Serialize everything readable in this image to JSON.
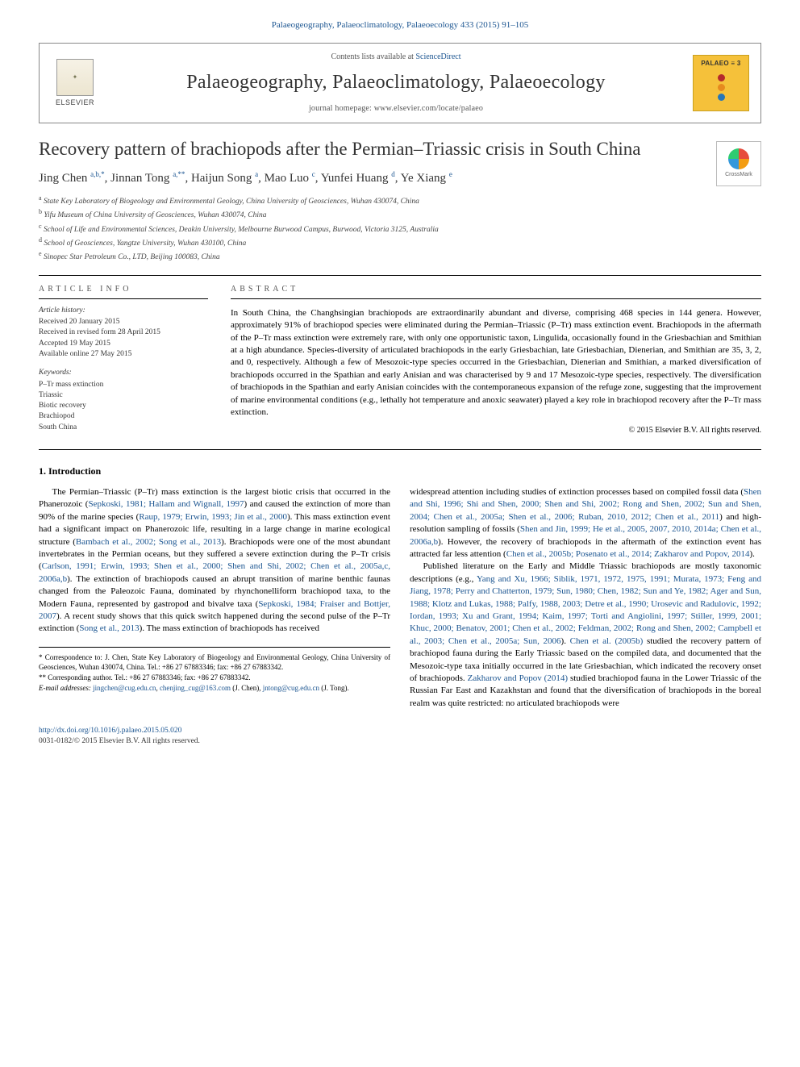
{
  "top_link": {
    "journal_ref": "Palaeogeography, Palaeoclimatology, Palaeoecology 433 (2015) 91–105"
  },
  "header": {
    "elsevier_label": "ELSEVIER",
    "contents_prefix": "Contents lists available at ",
    "contents_link": "ScienceDirect",
    "journal_title": "Palaeogeography, Palaeoclimatology, Palaeoecology",
    "homepage_prefix": "journal homepage: ",
    "homepage_url": "www.elsevier.com/locate/palaeo",
    "badge_text": "PALAEO ≡ 3",
    "badge_dot_colors": [
      "#b5292b",
      "#e68a1e",
      "#2676b8"
    ]
  },
  "article": {
    "title": "Recovery pattern of brachiopods after the Permian–Triassic crisis in South China",
    "crossmark_label": "CrossMark",
    "authors_html": "Jing Chen <sup>a,b,*</sup>, Jinnan Tong <sup>a,**</sup>, Haijun Song <sup>a</sup>, Mao Luo <sup>c</sup>, Yunfei Huang <sup>d</sup>, Ye Xiang <sup>e</sup>",
    "affiliations": [
      "a  State Key Laboratory of Biogeology and Environmental Geology, China University of Geosciences, Wuhan 430074, China",
      "b  Yifu Museum of China University of Geosciences, Wuhan 430074, China",
      "c  School of Life and Environmental Sciences, Deakin University, Melbourne Burwood Campus, Burwood, Victoria 3125, Australia",
      "d  School of Geosciences, Yangtze University, Wuhan 430100, China",
      "e  Sinopec Star Petroleum Co., LTD, Beijing 100083, China"
    ]
  },
  "info": {
    "heading": "article info",
    "history_head": "Article history:",
    "history": [
      "Received 20 January 2015",
      "Received in revised form 28 April 2015",
      "Accepted 19 May 2015",
      "Available online 27 May 2015"
    ],
    "keywords_head": "Keywords:",
    "keywords": [
      "P–Tr mass extinction",
      "Triassic",
      "Biotic recovery",
      "Brachiopod",
      "South China"
    ]
  },
  "abstract": {
    "heading": "abstract",
    "text": "In South China, the Changhsingian brachiopods are extraordinarily abundant and diverse, comprising 468 species in 144 genera. However, approximately 91% of brachiopod species were eliminated during the Permian–Triassic (P–Tr) mass extinction event. Brachiopods in the aftermath of the P–Tr mass extinction were extremely rare, with only one opportunistic taxon, Lingulida, occasionally found in the Griesbachian and Smithian at a high abundance. Species-diversity of articulated brachiopods in the early Griesbachian, late Griesbachian, Dienerian, and Smithian are 35, 3, 2, and 0, respectively. Although a few of Mesozoic-type species occurred in the Griesbachian, Dienerian and Smithian, a marked diversification of brachiopods occurred in the Spathian and early Anisian and was characterised by 9 and 17 Mesozoic-type species, respectively. The diversification of brachiopods in the Spathian and early Anisian coincides with the contemporaneous expansion of the refuge zone, suggesting that the improvement of marine environmental conditions (e.g., lethally hot temperature and anoxic seawater) played a key role in brachiopod recovery after the P–Tr mass extinction.",
    "copyright": "© 2015 Elsevier B.V. All rights reserved."
  },
  "introduction": {
    "heading": "1. Introduction",
    "p1_a": "The Permian–Triassic (P–Tr) mass extinction is the largest biotic crisis that occurred in the Phanerozoic (",
    "p1_ref1": "Sepkoski, 1981; Hallam and Wignall, 1997",
    "p1_b": ") and caused the extinction of more than 90% of the marine species (",
    "p1_ref2": "Raup, 1979; Erwin, 1993; Jin et al., 2000",
    "p1_c": "). This mass extinction event had a significant impact on Phanerozoic life, resulting in a large change in marine ecological structure (",
    "p1_ref3": "Bambach et al., 2002; Song et al., 2013",
    "p1_d": "). Brachiopods were one of the most abundant invertebrates in the Permian oceans, but they suffered a severe extinction during the P–Tr crisis (",
    "p1_ref4": "Carlson, 1991; Erwin, 1993; Shen et al., 2000; Shen and Shi, 2002; Chen et al., 2005a,c, 2006a,b",
    "p1_e": "). The extinction of brachiopods caused an abrupt transition of marine benthic faunas changed from the Paleozoic Fauna, dominated by rhynchonelliform brachiopod taxa, to the Modern Fauna, represented by gastropod and bivalve taxa (",
    "p1_ref5": "Sepkoski, 1984; Fraiser and Bottjer, 2007",
    "p1_f": "). A recent study shows that this quick switch happened during the second pulse of the P–Tr extinction (",
    "p1_ref6": "Song et al., 2013",
    "p1_g": "). The mass extinction of brachiopods has received ",
    "p1_cont_a": "widespread attention including studies of extinction processes based on compiled fossil data (",
    "p1_cont_ref1": "Shen and Shi, 1996; Shi and Shen, 2000; Shen and Shi, 2002; Rong and Shen, 2002; Sun and Shen, 2004; Chen et al., 2005a; Shen et al., 2006; Ruban, 2010, 2012; Chen et al., 2011",
    "p1_cont_b": ") and high-resolution sampling of fossils (",
    "p1_cont_ref2": "Shen and Jin, 1999; He et al., 2005, 2007, 2010, 2014a; Chen et al., 2006a,b",
    "p1_cont_c": "). However, the recovery of brachiopods in the aftermath of the extinction event has attracted far less attention (",
    "p1_cont_ref3": "Chen et al., 2005b; Posenato et al., 2014; Zakharov and Popov, 2014",
    "p1_cont_d": ").",
    "p2_a": "Published literature on the Early and Middle Triassic brachiopods are mostly taxonomic descriptions (e.g., ",
    "p2_ref1": "Yang and Xu, 1966; Siblik, 1971, 1972, 1975, 1991; Murata, 1973; Feng and Jiang, 1978; Perry and Chatterton, 1979; Sun, 1980; Chen, 1982; Sun and Ye, 1982; Ager and Sun, 1988; Klotz and Lukas, 1988; Palfy, 1988, 2003; Detre et al., 1990; Urosevic and Radulovic, 1992; Iordan, 1993; Xu and Grant, 1994; Kaim, 1997; Torti and Angiolini, 1997; Stiller, 1999, 2001; Khuc, 2000; Benatov, 2001; Chen et al., 2002; Feldman, 2002; Rong and Shen, 2002; Campbell et al., 2003; Chen et al., 2005a; Sun, 2006",
    "p2_b": "). ",
    "p2_ref2": "Chen et al. (2005b)",
    "p2_c": " studied the recovery pattern of brachiopod fauna during the Early Triassic based on the compiled data, and documented that the Mesozoic-type taxa initially occurred in the late Griesbachian, which indicated the recovery onset of brachiopods. ",
    "p2_ref3": "Zakharov and Popov (2014)",
    "p2_d": " studied brachiopod fauna in the Lower Triassic of the Russian Far East and Kazakhstan and found that the diversification of brachiopods in the boreal realm was quite restricted: no articulated brachiopods were"
  },
  "footnotes": {
    "corr1": "*  Correspondence to: J. Chen, State Key Laboratory of Biogeology and Environmental Geology, China University of Geosciences, Wuhan 430074, China. Tel.: +86 27 67883346; fax: +86 27 67883342.",
    "corr2": "** Corresponding author. Tel.: +86 27 67883346; fax: +86 27 67883342.",
    "emails_prefix": "E-mail addresses: ",
    "email1": "jingchen@cug.edu.cn",
    "email1_who": ", ",
    "email2": "chenjing_cug@163.com",
    "email2_who": " (J. Chen), ",
    "email3": "jntong@cug.edu.cn",
    "email3_who": " (J. Tong)."
  },
  "bottom": {
    "doi": "http://dx.doi.org/10.1016/j.palaeo.2015.05.020",
    "issn_line": "0031-0182/© 2015 Elsevier B.V. All rights reserved."
  },
  "colors": {
    "link": "#1a5490",
    "text": "#000000",
    "muted": "#555555",
    "badge_bg": "#f5c13a",
    "badge_border": "#c9a020"
  }
}
